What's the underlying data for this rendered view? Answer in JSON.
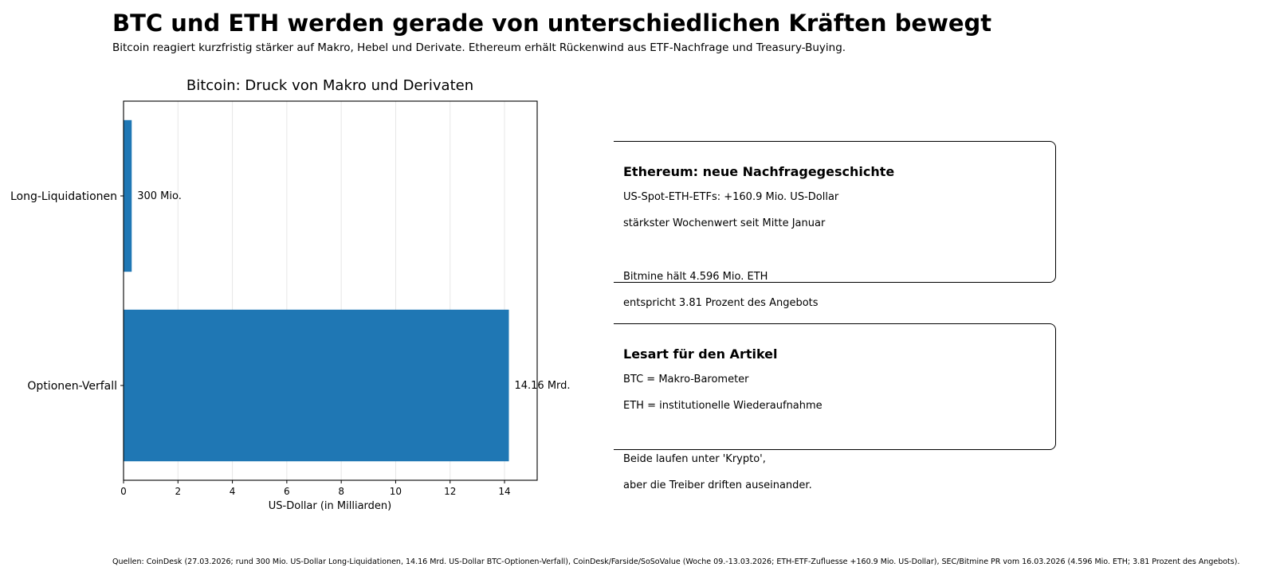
{
  "header": {
    "title": "BTC und ETH werden gerade von unterschiedlichen Kräften bewegt",
    "subtitle": "Bitcoin reagiert kurzfristig stärker auf Makro, Hebel und Derivate. Ethereum erhält Rückenwind aus ETF-Nachfrage und Treasury-Buying."
  },
  "chart_data": {
    "type": "bar",
    "orientation": "horizontal",
    "title": "Bitcoin: Druck von Makro und Derivaten",
    "xlabel": "US-Dollar (in Milliarden)",
    "ylabel": "",
    "categories": [
      "Long-Liquidationen",
      "Optionen-Verfall"
    ],
    "values": [
      0.3,
      14.16
    ],
    "data_labels": [
      "300 Mio.",
      "14.16 Mrd."
    ],
    "xlim": [
      0,
      15.2
    ],
    "xticks": [
      0,
      2,
      4,
      6,
      8,
      10,
      12,
      14
    ],
    "grid": "vertical",
    "bar_color": "#1f77b4"
  },
  "panel": {
    "eth": {
      "heading": "Ethereum: neue Nachfragegeschichte",
      "lines": [
        "US-Spot-ETH-ETFs: +160.9 Mio. US-Dollar",
        "stärkster Wochenwert seit Mitte Januar",
        "Bitmine hält 4.596 Mio. ETH",
        "entspricht 3.81 Prozent des Angebots"
      ]
    },
    "lesart": {
      "heading": "Lesart für den Artikel",
      "lines": [
        "BTC = Makro-Barometer",
        "ETH = institutionelle Wiederaufnahme",
        "Beide laufen unter 'Krypto',",
        "aber die Treiber driften auseinander."
      ]
    }
  },
  "footer": {
    "source": "Quellen: CoinDesk (27.03.2026; rund 300 Mio. US-Dollar Long-Liquidationen, 14.16 Mrd. US-Dollar BTC-Optionen-Verfall), CoinDesk/Farside/SoSoValue (Woche 09.-13.03.2026; ETH-ETF-Zufluesse +160.9 Mio. US-Dollar), SEC/Bitmine PR vom 16.03.2026 (4.596 Mio. ETH; 3.81 Prozent des Angebots)."
  }
}
